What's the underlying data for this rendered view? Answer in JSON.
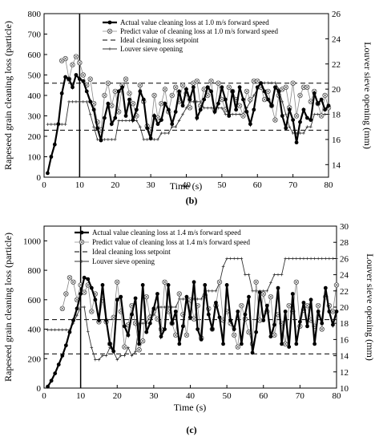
{
  "chart_data": [
    {
      "type": "line",
      "panel_label": "(b)",
      "xlabel": "Time (s)",
      "ylabel": "Rapeseed grain cleaning loss (particle)",
      "y2label": "Louver sieve opening (mm)",
      "xlim": [
        0,
        80
      ],
      "ylim": [
        0,
        800
      ],
      "y2lim": [
        13,
        26
      ],
      "xticks": [
        0,
        10,
        20,
        30,
        40,
        50,
        60,
        70,
        80
      ],
      "yticks": [
        0,
        100,
        200,
        300,
        400,
        500,
        600,
        700,
        800
      ],
      "y2ticks": [
        14,
        16,
        18,
        20,
        22,
        24,
        26
      ],
      "legend_position": "top-right",
      "vline_x": 10,
      "hlines": [
        {
          "y": 460
        },
        {
          "y": 230
        }
      ],
      "series": [
        {
          "name": "Actual value cleaning loss at 1.0 m/s forward speed",
          "axis": "left",
          "style": "filled-circle-thick",
          "x": [
            1,
            2,
            3,
            4,
            5,
            6,
            7,
            8,
            9,
            10,
            11,
            12,
            13,
            14,
            15,
            16,
            17,
            18,
            19,
            20,
            21,
            22,
            23,
            24,
            25,
            26,
            27,
            28,
            29,
            30,
            31,
            32,
            33,
            34,
            35,
            36,
            37,
            38,
            39,
            40,
            41,
            42,
            43,
            44,
            45,
            46,
            47,
            48,
            49,
            50,
            51,
            52,
            53,
            54,
            55,
            56,
            57,
            58,
            59,
            60,
            61,
            62,
            63,
            64,
            65,
            66,
            67,
            68,
            69,
            70,
            71,
            72,
            73,
            74,
            75,
            76,
            77,
            78,
            79,
            80
          ],
          "values": [
            20,
            100,
            160,
            260,
            410,
            490,
            480,
            440,
            500,
            480,
            470,
            420,
            370,
            330,
            240,
            180,
            290,
            360,
            260,
            290,
            420,
            440,
            300,
            380,
            280,
            330,
            420,
            380,
            240,
            190,
            300,
            260,
            280,
            360,
            330,
            260,
            320,
            420,
            350,
            430,
            380,
            440,
            290,
            330,
            380,
            440,
            420,
            320,
            360,
            440,
            380,
            300,
            420,
            330,
            440,
            380,
            320,
            260,
            330,
            440,
            460,
            420,
            380,
            350,
            440,
            420,
            300,
            240,
            330,
            280,
            170,
            270,
            330,
            290,
            280,
            410,
            360,
            380,
            330,
            350
          ]
        },
        {
          "name": "Predict value of cleaning loss at 1.0 m/s forward speed",
          "axis": "left",
          "style": "crossed-circle-thin",
          "x": [
            5,
            6,
            7,
            8,
            9,
            10,
            11,
            12,
            13,
            14,
            15,
            16,
            17,
            18,
            19,
            20,
            21,
            22,
            23,
            24,
            25,
            26,
            27,
            28,
            29,
            30,
            31,
            32,
            33,
            34,
            35,
            36,
            37,
            38,
            39,
            40,
            41,
            42,
            43,
            44,
            45,
            46,
            47,
            48,
            49,
            50,
            51,
            52,
            53,
            54,
            55,
            56,
            57,
            58,
            59,
            60,
            61,
            62,
            63,
            64,
            65,
            66,
            67,
            68,
            69,
            70,
            71,
            72,
            73,
            74,
            75,
            76,
            77,
            78,
            79,
            80
          ],
          "values": [
            570,
            580,
            480,
            550,
            590,
            560,
            500,
            450,
            480,
            360,
            270,
            230,
            400,
            460,
            350,
            420,
            320,
            450,
            480,
            410,
            360,
            300,
            450,
            370,
            250,
            230,
            400,
            290,
            360,
            430,
            320,
            400,
            440,
            370,
            450,
            410,
            340,
            460,
            470,
            350,
            430,
            400,
            470,
            330,
            460,
            380,
            330,
            440,
            420,
            380,
            350,
            300,
            420,
            380,
            470,
            470,
            440,
            380,
            420,
            350,
            280,
            400,
            430,
            440,
            340,
            460,
            300,
            400,
            440,
            440,
            370,
            420,
            360,
            300,
            400,
            340
          ]
        },
        {
          "name": "Ideal cleaning loss setpoint",
          "axis": "left",
          "style": "dashed",
          "x": [
            0,
            80
          ],
          "values": [
            460,
            460
          ]
        },
        {
          "name": "Louver sieve opening",
          "axis": "right",
          "style": "cross-thin",
          "x": [
            1,
            2,
            3,
            4,
            5,
            6,
            7,
            8,
            9,
            10,
            11,
            12,
            13,
            14,
            15,
            16,
            17,
            18,
            19,
            20,
            21,
            22,
            23,
            24,
            25,
            26,
            27,
            28,
            29,
            30,
            31,
            32,
            33,
            34,
            35,
            36,
            37,
            38,
            39,
            40,
            41,
            42,
            43,
            44,
            45,
            46,
            47,
            48,
            49,
            50,
            51,
            52,
            53,
            54,
            55,
            56,
            57,
            58,
            59,
            60,
            61,
            62,
            63,
            64,
            65,
            66,
            67,
            68,
            69,
            70,
            71,
            72,
            73,
            74,
            75,
            76,
            77,
            78,
            79,
            80
          ],
          "values": [
            17.2,
            17.2,
            17.2,
            17.2,
            17.2,
            17.2,
            19.0,
            19.0,
            19.0,
            19.0,
            19.0,
            19.0,
            18.0,
            17.0,
            16.0,
            16.0,
            16.0,
            16.0,
            16.0,
            16.0,
            17.5,
            17.5,
            17.5,
            17.5,
            17.5,
            17.5,
            17.0,
            16.0,
            16.0,
            16.0,
            16.0,
            16.0,
            16.5,
            16.5,
            16.5,
            17.0,
            17.0,
            17.5,
            18.0,
            18.5,
            19.0,
            19.0,
            19.0,
            19.0,
            18.5,
            18.5,
            18.5,
            18.5,
            18.5,
            18.5,
            18.0,
            18.0,
            18.0,
            18.0,
            18.0,
            18.0,
            18.5,
            19.0,
            19.5,
            20.0,
            20.5,
            20.5,
            20.5,
            20.5,
            20.5,
            20.0,
            19.0,
            18.0,
            17.0,
            16.5,
            16.5,
            16.5,
            16.5,
            17.0,
            17.0,
            18.0,
            18.0,
            18.0,
            18.0,
            18.0
          ]
        }
      ]
    },
    {
      "type": "line",
      "panel_label": "(c)",
      "xlabel": "Time (s)",
      "ylabel": "Rapeseed grain cleaning loss (particle)",
      "y2label": "Louver sieve opening (mm)",
      "xlim": [
        0,
        80
      ],
      "ylim": [
        0,
        1100
      ],
      "y2lim": [
        10,
        30
      ],
      "xticks": [
        0,
        10,
        20,
        30,
        40,
        50,
        60,
        70,
        80
      ],
      "yticks": [
        0,
        200,
        400,
        600,
        800,
        1000
      ],
      "y2ticks": [
        10,
        12,
        14,
        16,
        18,
        20,
        22,
        24,
        26,
        28,
        30
      ],
      "legend_position": "top-right",
      "vline_x": 10,
      "hlines": [
        {
          "y": 465
        },
        {
          "y": 232
        }
      ],
      "series": [
        {
          "name": "Actual value cleaning loss at 1.4 m/s forward speed",
          "axis": "left",
          "style": "filled-circle-thick",
          "x": [
            1,
            2,
            3,
            4,
            5,
            6,
            7,
            8,
            9,
            10,
            11,
            12,
            13,
            14,
            15,
            16,
            17,
            18,
            19,
            20,
            21,
            22,
            23,
            24,
            25,
            26,
            27,
            28,
            29,
            30,
            31,
            32,
            33,
            34,
            35,
            36,
            37,
            38,
            39,
            40,
            41,
            42,
            43,
            44,
            45,
            46,
            47,
            48,
            49,
            50,
            51,
            52,
            53,
            54,
            55,
            56,
            57,
            58,
            59,
            60,
            61,
            62,
            63,
            64,
            65,
            66,
            67,
            68,
            69,
            70,
            71,
            72,
            73,
            74,
            75,
            76,
            77,
            78,
            79,
            80
          ],
          "values": [
            10,
            50,
            100,
            160,
            220,
            290,
            380,
            460,
            540,
            640,
            750,
            740,
            680,
            600,
            460,
            700,
            460,
            300,
            250,
            600,
            620,
            420,
            360,
            500,
            610,
            300,
            700,
            380,
            440,
            540,
            640,
            350,
            400,
            700,
            440,
            520,
            300,
            420,
            620,
            480,
            720,
            400,
            330,
            700,
            500,
            400,
            580,
            480,
            300,
            700,
            460,
            400,
            520,
            300,
            500,
            620,
            240,
            380,
            650,
            460,
            560,
            350,
            430,
            680,
            300,
            520,
            280,
            640,
            300,
            450,
            580,
            420,
            600,
            300,
            520,
            440,
            680,
            520,
            430,
            520
          ]
        },
        {
          "name": "Predict value of cleaning loss at 1.4 m/s forward speed",
          "axis": "left",
          "style": "crossed-circle-thin",
          "x": [
            5,
            6,
            7,
            8,
            9,
            10,
            11,
            12,
            13,
            14,
            15,
            16,
            17,
            18,
            19,
            20,
            21,
            22,
            23,
            24,
            25,
            26,
            27,
            28,
            29,
            30,
            31,
            32,
            33,
            34,
            35,
            36,
            37,
            38,
            39,
            40,
            41,
            42,
            43,
            44,
            45,
            46,
            47,
            48,
            49,
            50,
            51,
            52,
            53,
            54,
            55,
            56,
            57,
            58,
            59,
            60,
            61,
            62,
            63,
            64,
            65,
            66,
            67,
            68,
            69,
            70,
            71,
            72,
            73,
            74,
            75,
            76,
            77,
            78,
            79,
            80
          ],
          "values": [
            540,
            640,
            750,
            720,
            600,
            700,
            650,
            700,
            520,
            640,
            450,
            600,
            450,
            300,
            480,
            720,
            520,
            280,
            430,
            560,
            440,
            260,
            320,
            620,
            480,
            520,
            470,
            400,
            720,
            520,
            440,
            360,
            640,
            500,
            360,
            600,
            470,
            560,
            340,
            630,
            540,
            400,
            560,
            720,
            460,
            520,
            440,
            360,
            280,
            560,
            470,
            380,
            300,
            720,
            460,
            640,
            520,
            620,
            360,
            500,
            440,
            300,
            560,
            520,
            720,
            420,
            530,
            560,
            460,
            420,
            560,
            400,
            620,
            560,
            520,
            700
          ]
        },
        {
          "name": "Ideal cleaning loss setpoint",
          "axis": "left",
          "style": "dashed",
          "x": [
            0,
            80
          ],
          "values": [
            465,
            465
          ]
        },
        {
          "name": "Louver sieve opening",
          "axis": "right",
          "style": "cross-thin",
          "x": [
            1,
            2,
            3,
            4,
            5,
            6,
            7,
            8,
            9,
            10,
            11,
            12,
            13,
            14,
            15,
            16,
            17,
            18,
            19,
            20,
            21,
            22,
            23,
            24,
            25,
            26,
            27,
            28,
            29,
            30,
            31,
            32,
            33,
            34,
            35,
            36,
            37,
            38,
            39,
            40,
            41,
            42,
            43,
            44,
            45,
            46,
            47,
            48,
            49,
            50,
            51,
            52,
            53,
            54,
            55,
            56,
            57,
            58,
            59,
            60,
            61,
            62,
            63,
            64,
            65,
            66,
            67,
            68,
            69,
            70,
            71,
            72,
            73,
            74,
            75,
            76,
            77,
            78,
            79,
            80
          ],
          "values": [
            17.2,
            17.2,
            17.2,
            17.2,
            17.2,
            17.2,
            17.2,
            18.0,
            19.0,
            20.0,
            20.0,
            17.0,
            15.0,
            13.5,
            13.5,
            14.0,
            14.0,
            15.0,
            14.5,
            13.5,
            14.0,
            14.0,
            15.0,
            14.0,
            14.5,
            18.0,
            18.0,
            18.0,
            19.0,
            19.0,
            20.0,
            20.0,
            20.0,
            20.0,
            20.0,
            20.0,
            21.0,
            21.0,
            21.0,
            21.0,
            21.0,
            21.0,
            21.0,
            22.0,
            22.0,
            22.0,
            22.0,
            23.0,
            25.0,
            26.0,
            26.0,
            26.0,
            26.0,
            26.0,
            24.0,
            24.0,
            22.0,
            22.0,
            22.0,
            22.0,
            22.0,
            23.0,
            24.0,
            24.0,
            24.0,
            26.0,
            26.0,
            26.0,
            26.0,
            26.0,
            26.0,
            26.0,
            26.0,
            26.0,
            26.0,
            26.0,
            26.0,
            26.0,
            26.0,
            26.0
          ]
        }
      ]
    }
  ]
}
